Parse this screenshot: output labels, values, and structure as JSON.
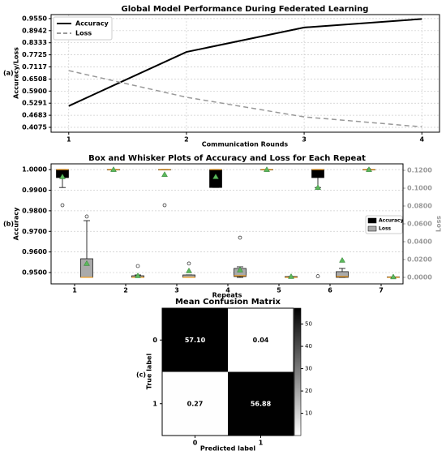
{
  "chart_data": [
    {
      "type": "line",
      "panel_label": "(a)",
      "title": "Global Model Performance During Federated Learning",
      "xlabel": "Communication Rounds",
      "ylabel": "Accuracy/Loss",
      "x": [
        1,
        2,
        3,
        4
      ],
      "series": [
        {
          "name": "Accuracy",
          "color": "#000000",
          "linestyle": "solid",
          "values": [
            0.515,
            0.787,
            0.91,
            0.953
          ]
        },
        {
          "name": "Loss",
          "color": "#999999",
          "linestyle": "dashed",
          "values": [
            0.693,
            0.559,
            0.46,
            0.41
          ]
        }
      ],
      "xlim": [
        0.85,
        4.15
      ],
      "ylim": [
        0.383,
        0.975
      ],
      "xticks": [
        1,
        2,
        3,
        4
      ],
      "yticks": [
        0.4075,
        0.4683,
        0.5291,
        {
          "value": 0.59,
          "label": "0.5900"
        },
        0.6508,
        0.7117,
        0.7725,
        0.8333,
        0.8942,
        {
          "value": 0.955,
          "label": "0.9550"
        }
      ],
      "grid": true,
      "legend": "upper left"
    },
    {
      "type": "box",
      "panel_label": "(b)",
      "title": "Box and Whisker Plots of Accuracy and Loss for Each Repeat",
      "xlabel": "Repeats",
      "ylabel": "Accuracy",
      "y2label": "Loss",
      "categories": [
        "1",
        "2",
        "3",
        "4",
        "5",
        "6",
        "7"
      ],
      "mean_color": "#5cb85c",
      "median_color": "#ff9800",
      "series": [
        {
          "name": "Accuracy",
          "color": "#000000",
          "boxes": [
            {
              "whislo": 0.9913,
              "q1": 0.9961,
              "med": 1.0,
              "q3": 1.0,
              "whishi": 1.0,
              "mean": 0.9965,
              "fliers": [
                0.9827
              ]
            },
            {
              "whislo": 1.0,
              "q1": 1.0,
              "med": 1.0,
              "q3": 1.0,
              "whishi": 1.0,
              "mean": 1.0,
              "fliers": []
            },
            {
              "whislo": 1.0,
              "q1": 1.0,
              "med": 1.0,
              "q3": 1.0,
              "whishi": 1.0,
              "mean": 0.9976,
              "fliers": [
                0.9827
              ]
            },
            {
              "whislo": 0.9913,
              "q1": 0.9913,
              "med": 1.0,
              "q3": 1.0,
              "whishi": 1.0,
              "mean": 0.9965,
              "fliers": []
            },
            {
              "whislo": 1.0,
              "q1": 1.0,
              "med": 1.0,
              "q3": 1.0,
              "whishi": 1.0,
              "mean": 1.0,
              "fliers": []
            },
            {
              "whislo": 0.9913,
              "q1": 0.9961,
              "med": 1.0,
              "q3": 1.0,
              "whishi": 1.0,
              "mean": 0.9913,
              "fliers": [
                0.9482
              ]
            },
            {
              "whislo": 1.0,
              "q1": 1.0,
              "med": 1.0,
              "q3": 1.0,
              "whishi": 1.0,
              "mean": 1.0,
              "fliers": [
                1.0
              ]
            }
          ]
        },
        {
          "name": "Loss",
          "color": "#aaaaaa",
          "axis": "y2",
          "boxes": [
            {
              "whislo": 0,
              "q1": 0,
              "med": 0,
              "q3": 0.0209,
              "whishi": 0.0636,
              "mean": 0.0155,
              "fliers": [
                0.0682
              ]
            },
            {
              "whislo": 0,
              "q1": 0,
              "med": 0,
              "q3": 0.0018,
              "whishi": 0.0027,
              "mean": 0.0018,
              "fliers": [
                0.0127
              ]
            },
            {
              "whislo": 0,
              "q1": 0,
              "med": 0,
              "q3": 0.0027,
              "whishi": 0.0027,
              "mean": 0.0073,
              "fliers": [
                0.0155
              ]
            },
            {
              "whislo": 0,
              "q1": 0.0009,
              "med": 0.0018,
              "q3": 0.01,
              "whishi": 0.0118,
              "mean": 0.0082,
              "fliers": [
                0.0445
              ]
            },
            {
              "whislo": 0,
              "q1": 0,
              "med": 0,
              "q3": 0.0009,
              "whishi": 0.0009,
              "mean": 0.0009,
              "fliers": []
            },
            {
              "whislo": 0,
              "q1": 0,
              "med": 0.0009,
              "q3": 0.0064,
              "whishi": 0.01,
              "mean": 0.0191,
              "fliers": []
            },
            {
              "whislo": 0,
              "q1": 0,
              "med": 0,
              "q3": 0.0005,
              "whishi": 0.0005,
              "mean": 0.0005,
              "fliers": []
            }
          ]
        }
      ],
      "ylim": [
        0.9445,
        1.0028
      ],
      "yticks": [
        {
          "value": 0.95,
          "label": "0.9500"
        },
        {
          "value": 0.96,
          "label": "0.9600"
        },
        {
          "value": 0.97,
          "label": "0.9700"
        },
        {
          "value": 0.98,
          "label": "0.9800"
        },
        {
          "value": 0.99,
          "label": "0.9900"
        },
        {
          "value": 1.0,
          "label": "1.0000"
        }
      ],
      "y2lim": [
        -0.0073,
        0.1273
      ],
      "y2ticks": [
        {
          "value": 0,
          "label": "0.0000"
        },
        {
          "value": 0.02,
          "label": "0.0200"
        },
        {
          "value": 0.04,
          "label": "0.0400"
        },
        {
          "value": 0.06,
          "label": "0.0600"
        },
        {
          "value": 0.08,
          "label": "0.0800"
        },
        {
          "value": 0.1,
          "label": "0.1000"
        },
        {
          "value": 0.12,
          "label": "0.1200"
        }
      ],
      "grid": true,
      "legend": "center right"
    },
    {
      "type": "heatmap",
      "panel_label": "(c)",
      "title": "Mean Confusion Matrix",
      "xlabel": "Predicted label",
      "ylabel": "True label",
      "xcategories": [
        "0",
        "1"
      ],
      "ycategories": [
        "0",
        "1"
      ],
      "values": [
        [
          57.1,
          0.04
        ],
        [
          0.27,
          56.88
        ]
      ],
      "value_labels": [
        [
          "57.10",
          "0.04"
        ],
        [
          "0.27",
          "56.88"
        ]
      ],
      "clim": [
        0.04,
        57.1
      ],
      "colorbar_ticks": [
        10,
        20,
        30,
        40,
        50
      ],
      "colormap": "gray_r"
    }
  ]
}
